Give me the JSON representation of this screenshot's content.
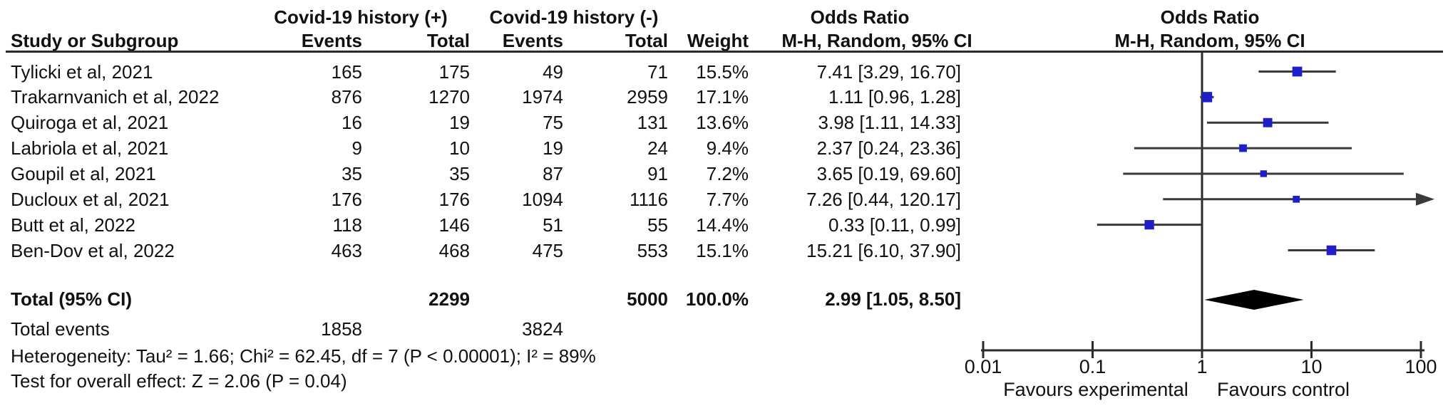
{
  "header": {
    "study_col": "Study or Subgroup",
    "group_positive": "Covid-19 history (+)",
    "group_negative": "Covid-19 history (-)",
    "events_pos_col": "Events",
    "total_pos_col": "Total",
    "events_neg_col": "Events",
    "total_neg_col": "Total",
    "weight_col": "Weight",
    "or_col_title": "Odds Ratio",
    "or_col_sub": "M-H, Random, 95% CI",
    "plot_col_title": "Odds Ratio",
    "plot_col_sub": "M-H, Random, 95% CI"
  },
  "chart_data": {
    "type": "forest",
    "effect_measure": "Odds Ratio",
    "method": "M-H, Random, 95% CI",
    "x_scale": "log",
    "x_ticks": [
      "0.01",
      "0.1",
      "1",
      "10",
      "100"
    ],
    "x_range": [
      0.01,
      100
    ],
    "favours_left": "Favours experimental",
    "favours_right": "Favours control",
    "studies": [
      {
        "name": "Tylicki et al, 2021",
        "events_pos": "165",
        "total_pos": "175",
        "events_neg": "49",
        "total_neg": "71",
        "weight_label": "15.5%",
        "weight": 15.5,
        "or": 7.41,
        "ci_low": 3.29,
        "ci_high": 16.7,
        "or_label": "7.41 [3.29, 16.70]"
      },
      {
        "name": "Trakarnvanich et al, 2022",
        "events_pos": "876",
        "total_pos": "1270",
        "events_neg": "1974",
        "total_neg": "2959",
        "weight_label": "17.1%",
        "weight": 17.1,
        "or": 1.11,
        "ci_low": 0.96,
        "ci_high": 1.28,
        "or_label": "1.11 [0.96, 1.28]"
      },
      {
        "name": "Quiroga et al, 2021",
        "events_pos": "16",
        "total_pos": "19",
        "events_neg": "75",
        "total_neg": "131",
        "weight_label": "13.6%",
        "weight": 13.6,
        "or": 3.98,
        "ci_low": 1.11,
        "ci_high": 14.33,
        "or_label": "3.98 [1.11, 14.33]"
      },
      {
        "name": "Labriola et al, 2021",
        "events_pos": "9",
        "total_pos": "10",
        "events_neg": "19",
        "total_neg": "24",
        "weight_label": "9.4%",
        "weight": 9.4,
        "or": 2.37,
        "ci_low": 0.24,
        "ci_high": 23.36,
        "or_label": "2.37 [0.24, 23.36]"
      },
      {
        "name": "Goupil et al, 2021",
        "events_pos": "35",
        "total_pos": "35",
        "events_neg": "87",
        "total_neg": "91",
        "weight_label": "7.2%",
        "weight": 7.2,
        "or": 3.65,
        "ci_low": 0.19,
        "ci_high": 69.6,
        "or_label": "3.65 [0.19, 69.60]"
      },
      {
        "name": "Ducloux et al, 2021",
        "events_pos": "176",
        "total_pos": "176",
        "events_neg": "1094",
        "total_neg": "1116",
        "weight_label": "7.7%",
        "weight": 7.7,
        "or": 7.26,
        "ci_low": 0.44,
        "ci_high": 120.17,
        "or_label": "7.26 [0.44, 120.17]"
      },
      {
        "name": "Butt et al, 2022",
        "events_pos": "118",
        "total_pos": "146",
        "events_neg": "51",
        "total_neg": "55",
        "weight_label": "14.4%",
        "weight": 14.4,
        "or": 0.33,
        "ci_low": 0.11,
        "ci_high": 0.99,
        "or_label": "0.33 [0.11, 0.99]"
      },
      {
        "name": "Ben-Dov et al, 2022",
        "events_pos": "463",
        "total_pos": "468",
        "events_neg": "475",
        "total_neg": "553",
        "weight_label": "15.1%",
        "weight": 15.1,
        "or": 15.21,
        "ci_low": 6.1,
        "ci_high": 37.9,
        "or_label": "15.21 [6.10, 37.90]"
      }
    ],
    "total": {
      "name": "Total (95% CI)",
      "total_pos": "2299",
      "total_neg": "5000",
      "weight_label": "100.0%",
      "or": 2.99,
      "ci_low": 1.05,
      "ci_high": 8.5,
      "or_label": "2.99 [1.05, 8.50]"
    },
    "total_events": {
      "label": "Total events",
      "pos": "1858",
      "neg": "3824"
    },
    "heterogeneity": "Heterogeneity: Tau² = 1.66; Chi² = 62.45, df = 7 (P < 0.00001); I² = 89%",
    "overall_effect": "Test for overall effect: Z = 2.06 (P = 0.04)",
    "colors": {
      "marker": "#1f1fca",
      "ci_line": "#3a3a3a",
      "axis": "#2b2b2b",
      "diamond": "#000000",
      "text": "#111111"
    }
  }
}
